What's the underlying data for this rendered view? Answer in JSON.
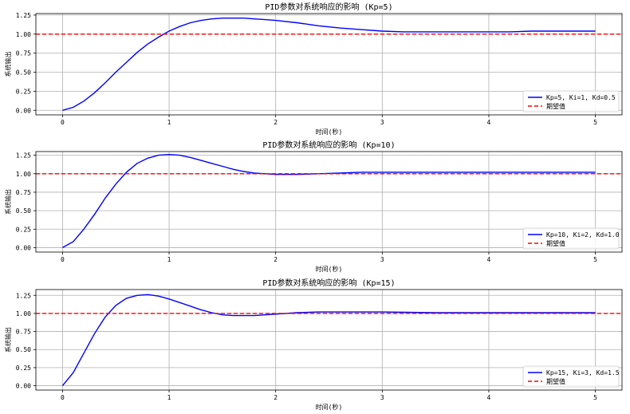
{
  "chart_data": [
    {
      "type": "line",
      "title": "PID参数对系统响应的影响 (Kp=5)",
      "xlabel": "时间(秒)",
      "ylabel": "系统输出",
      "xlim": [
        -0.25,
        5.25
      ],
      "ylim": [
        -0.06,
        1.27
      ],
      "xticks": [
        0,
        1,
        2,
        3,
        4,
        5
      ],
      "yticks": [
        0.0,
        0.25,
        0.5,
        0.75,
        1.0,
        1.25
      ],
      "ytick_labels": [
        "0.00",
        "0.25",
        "0.50",
        "0.75",
        "1.00",
        "1.25"
      ],
      "grid": true,
      "legend_position": "lower-right",
      "series": [
        {
          "name": "Kp=5, Ki=1, Kd=0.5",
          "color": "#0000ff",
          "style": "solid",
          "x": [
            0,
            0.1,
            0.2,
            0.3,
            0.4,
            0.5,
            0.6,
            0.7,
            0.8,
            0.9,
            1.0,
            1.1,
            1.2,
            1.3,
            1.4,
            1.5,
            1.6,
            1.7,
            1.8,
            1.9,
            2.0,
            2.2,
            2.4,
            2.6,
            2.8,
            3.0,
            3.2,
            3.4,
            3.6,
            3.8,
            4.0,
            4.2,
            4.4,
            4.6,
            4.8,
            5.0
          ],
          "y": [
            0.0,
            0.04,
            0.12,
            0.23,
            0.36,
            0.5,
            0.63,
            0.76,
            0.87,
            0.96,
            1.04,
            1.1,
            1.15,
            1.18,
            1.2,
            1.21,
            1.21,
            1.21,
            1.2,
            1.19,
            1.18,
            1.15,
            1.11,
            1.08,
            1.06,
            1.04,
            1.03,
            1.03,
            1.03,
            1.03,
            1.03,
            1.03,
            1.04,
            1.04,
            1.04,
            1.04
          ]
        },
        {
          "name": "期望值",
          "color": "#ff0000",
          "style": "dashed",
          "x": [
            -0.25,
            5.25
          ],
          "y": [
            1.0,
            1.0
          ]
        }
      ]
    },
    {
      "type": "line",
      "title": "PID参数对系统响应的影响 (Kp=10)",
      "xlabel": "时间(秒)",
      "ylabel": "系统输出",
      "xlim": [
        -0.25,
        5.25
      ],
      "ylim": [
        -0.06,
        1.3
      ],
      "xticks": [
        0,
        1,
        2,
        3,
        4,
        5
      ],
      "yticks": [
        0.0,
        0.25,
        0.5,
        0.75,
        1.0,
        1.25
      ],
      "ytick_labels": [
        "0.00",
        "0.25",
        "0.50",
        "0.75",
        "1.00",
        "1.25"
      ],
      "grid": true,
      "legend_position": "lower-right",
      "series": [
        {
          "name": "Kp=10, Ki=2, Kd=1.0",
          "color": "#0000ff",
          "style": "solid",
          "x": [
            0,
            0.1,
            0.2,
            0.3,
            0.4,
            0.5,
            0.6,
            0.7,
            0.8,
            0.9,
            1.0,
            1.1,
            1.2,
            1.3,
            1.4,
            1.5,
            1.6,
            1.7,
            1.8,
            1.9,
            2.0,
            2.2,
            2.4,
            2.6,
            2.8,
            3.0,
            3.5,
            4.0,
            4.5,
            5.0
          ],
          "y": [
            0.0,
            0.08,
            0.25,
            0.45,
            0.67,
            0.86,
            1.02,
            1.14,
            1.21,
            1.25,
            1.26,
            1.25,
            1.22,
            1.18,
            1.14,
            1.1,
            1.06,
            1.03,
            1.01,
            1.0,
            0.99,
            0.99,
            1.0,
            1.01,
            1.02,
            1.02,
            1.02,
            1.02,
            1.02,
            1.02
          ]
        },
        {
          "name": "期望值",
          "color": "#ff0000",
          "style": "dashed",
          "x": [
            -0.25,
            5.25
          ],
          "y": [
            1.0,
            1.0
          ]
        }
      ]
    },
    {
      "type": "line",
      "title": "PID参数对系统响应的影响 (Kp=15)",
      "xlabel": "时间(秒)",
      "ylabel": "系统输出",
      "xlim": [
        -0.25,
        5.25
      ],
      "ylim": [
        -0.06,
        1.33
      ],
      "xticks": [
        0,
        1,
        2,
        3,
        4,
        5
      ],
      "yticks": [
        0.0,
        0.25,
        0.5,
        0.75,
        1.0,
        1.25
      ],
      "ytick_labels": [
        "0.00",
        "0.25",
        "0.50",
        "0.75",
        "1.00",
        "1.25"
      ],
      "grid": true,
      "legend_position": "lower-right",
      "series": [
        {
          "name": "Kp=15, Ki=3, Kd=1.5",
          "color": "#0000ff",
          "style": "solid",
          "x": [
            0,
            0.1,
            0.2,
            0.3,
            0.4,
            0.5,
            0.6,
            0.7,
            0.8,
            0.9,
            1.0,
            1.1,
            1.2,
            1.3,
            1.4,
            1.5,
            1.6,
            1.7,
            1.8,
            1.9,
            2.0,
            2.2,
            2.4,
            2.6,
            2.8,
            3.0,
            3.5,
            4.0,
            4.5,
            5.0
          ],
          "y": [
            0.0,
            0.18,
            0.45,
            0.72,
            0.95,
            1.11,
            1.21,
            1.25,
            1.26,
            1.24,
            1.2,
            1.15,
            1.1,
            1.05,
            1.01,
            0.98,
            0.97,
            0.97,
            0.97,
            0.98,
            0.99,
            1.01,
            1.02,
            1.02,
            1.02,
            1.02,
            1.01,
            1.01,
            1.01,
            1.01
          ]
        },
        {
          "name": "期望值",
          "color": "#ff0000",
          "style": "dashed",
          "x": [
            -0.25,
            5.25
          ],
          "y": [
            1.0,
            1.0
          ]
        }
      ]
    }
  ]
}
